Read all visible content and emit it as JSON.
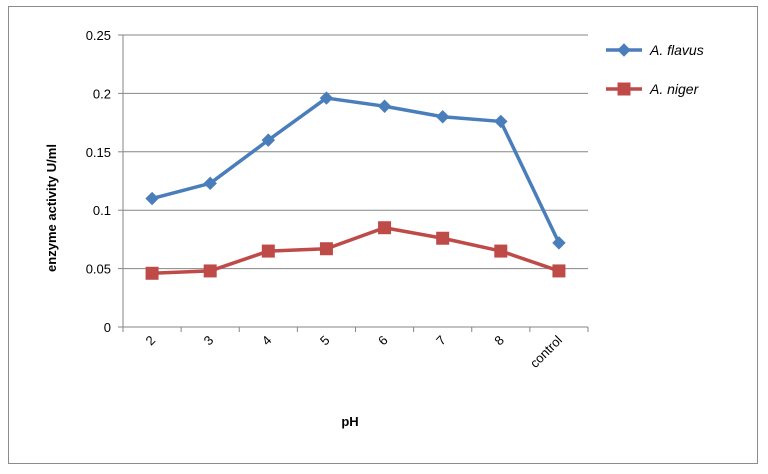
{
  "chart_data": {
    "type": "line",
    "title": "",
    "xlabel": "pH",
    "ylabel": "enzyme activity  U/ml",
    "categories": [
      "2",
      "3",
      "4",
      "5",
      "6",
      "7",
      "8",
      "control"
    ],
    "ylim": [
      0,
      0.25
    ],
    "yticks": [
      "0",
      "0.05",
      "0.1",
      "0.15",
      "0.2",
      "0.25"
    ],
    "grid": true,
    "legend_position": "right",
    "series": [
      {
        "name": "A. flavus",
        "color": "#4a7ebb",
        "marker": "diamond",
        "values": [
          0.11,
          0.123,
          0.16,
          0.196,
          0.189,
          0.18,
          0.176,
          0.072
        ]
      },
      {
        "name": "A. niger",
        "color": "#be4b48",
        "marker": "square",
        "values": [
          0.046,
          0.048,
          0.065,
          0.067,
          0.085,
          0.076,
          0.065,
          0.048
        ]
      }
    ]
  }
}
